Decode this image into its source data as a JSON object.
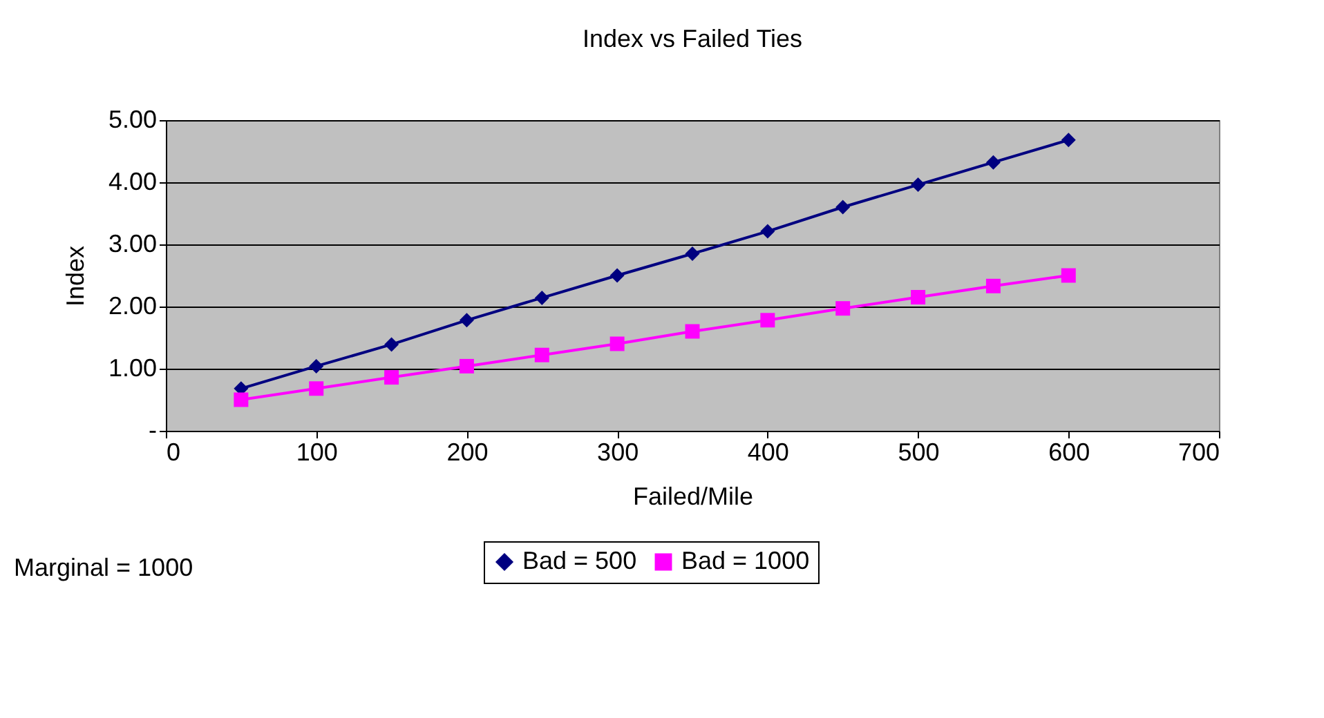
{
  "chart_data": {
    "type": "line",
    "title": "Index vs Failed Ties",
    "xlabel": "Failed/Mile",
    "ylabel": "Index",
    "x": [
      50,
      100,
      150,
      200,
      250,
      300,
      350,
      400,
      450,
      500,
      550,
      600
    ],
    "series": [
      {
        "name": "Bad = 500",
        "color": "#000080",
        "marker": "diamond",
        "values": [
          0.68,
          1.04,
          1.39,
          1.78,
          2.14,
          2.5,
          2.85,
          3.21,
          3.6,
          3.96,
          4.32,
          4.68
        ]
      },
      {
        "name": "Bad = 1000",
        "color": "#ff00ff",
        "marker": "square",
        "values": [
          0.5,
          0.68,
          0.86,
          1.04,
          1.22,
          1.4,
          1.6,
          1.78,
          1.97,
          2.15,
          2.33,
          2.5
        ]
      }
    ],
    "xlim": [
      0,
      700
    ],
    "xticks": [
      0,
      100,
      200,
      300,
      400,
      500,
      600,
      700
    ],
    "ylim": [
      0,
      5
    ],
    "yticks": [
      {
        "value": 0,
        "label": "-"
      },
      {
        "value": 1,
        "label": "1.00"
      },
      {
        "value": 2,
        "label": "2.00"
      },
      {
        "value": 3,
        "label": "3.00"
      },
      {
        "value": 4,
        "label": "4.00"
      },
      {
        "value": 5,
        "label": "5.00"
      }
    ],
    "grid": "y",
    "legend": "bottom",
    "line_style": "solid",
    "annotations": [
      "Marginal = 1000"
    ]
  }
}
